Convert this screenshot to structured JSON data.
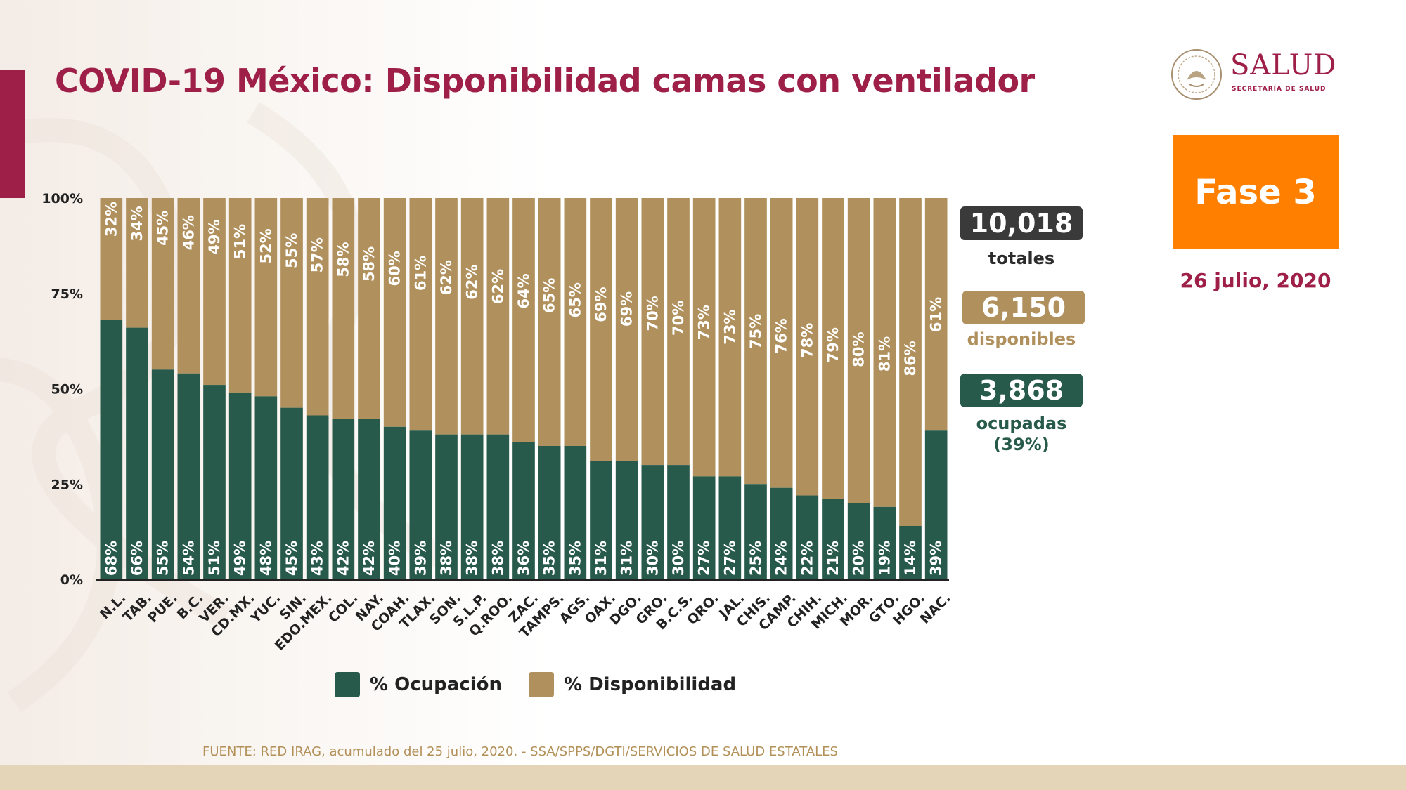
{
  "header": {
    "title": "COVID-19 México: Disponibilidad camas con ventilador"
  },
  "logo": {
    "name": "SALUD",
    "subtitle": "SECRETARÍA DE SALUD",
    "seal_text": "ESTADOS UNIDOS MEXICANOS"
  },
  "phase": {
    "label": "Fase 3",
    "color": "#ff8000"
  },
  "date": "26 julio, 2020",
  "stats": {
    "total": {
      "value": "10,018",
      "label": "totales",
      "color": "#3a3a3a"
    },
    "available": {
      "value": "6,150",
      "label": "disponibles",
      "color": "#b0905c"
    },
    "occupied": {
      "value": "3,868",
      "label": "ocupadas",
      "label2": "(39%)",
      "color": "#275a4b"
    }
  },
  "legend": {
    "occupancy": "% Ocupación",
    "availability": "% Disponibilidad"
  },
  "source": "FUENTE: RED IRAG, acumulado del 25 julio, 2020. -  SSA/SPPS/DGTI/SERVICIOS DE SALUD ESTATALES",
  "colors": {
    "occupancy": "#275a4b",
    "availability": "#b0905c",
    "brand": "#9e1f48",
    "axis": "#222222"
  },
  "chart_data": {
    "type": "bar",
    "stacked": true,
    "percent": true,
    "categories": [
      "N.L.",
      "TAB.",
      "PUE.",
      "B.C.",
      "VER.",
      "CD.MX.",
      "YUC.",
      "SIN.",
      "EDO.MEX.",
      "COL.",
      "NAY.",
      "COAH.",
      "TLAX.",
      "SON.",
      "S.L.P.",
      "Q.ROO.",
      "ZAC.",
      "TAMPS.",
      "AGS.",
      "OAX.",
      "DGO.",
      "GRO.",
      "B.C.S.",
      "QRO.",
      "JAL.",
      "CHIS.",
      "CAMP.",
      "CHIH.",
      "MICH.",
      "MOR.",
      "GTO.",
      "HGO.",
      "NAC."
    ],
    "series": [
      {
        "name": "% Ocupación",
        "values": [
          68,
          66,
          55,
          54,
          51,
          49,
          48,
          45,
          43,
          42,
          42,
          40,
          39,
          38,
          38,
          38,
          36,
          35,
          35,
          31,
          31,
          30,
          30,
          27,
          27,
          25,
          24,
          22,
          21,
          20,
          19,
          14,
          39
        ]
      },
      {
        "name": "% Disponibilidad",
        "values": [
          32,
          34,
          45,
          46,
          49,
          51,
          52,
          55,
          57,
          58,
          58,
          60,
          61,
          62,
          62,
          62,
          64,
          65,
          65,
          69,
          69,
          70,
          70,
          73,
          73,
          75,
          76,
          78,
          79,
          80,
          81,
          86,
          61
        ]
      }
    ],
    "ylim": [
      0,
      100
    ],
    "yticks": [
      "0%",
      "25%",
      "50%",
      "75%",
      "100%"
    ],
    "xlabel": "",
    "ylabel": ""
  }
}
